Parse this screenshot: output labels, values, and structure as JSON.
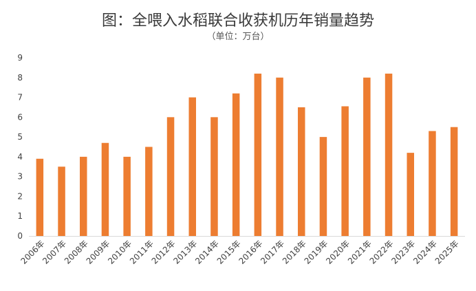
{
  "chart_data": {
    "type": "bar",
    "title": "图：全喂入水稻联合收获机历年销量趋势",
    "subtitle": "（单位：万台）",
    "xlabel": "",
    "ylabel": "",
    "categories": [
      "2006年",
      "2007年",
      "2008年",
      "2009年",
      "2010年",
      "2011年",
      "2012年",
      "2013年",
      "2014年",
      "2015年",
      "2016年",
      "2017年",
      "2018年",
      "2019年",
      "2020年",
      "2021年",
      "2022年",
      "2023年",
      "2024年",
      "2025年"
    ],
    "values": [
      3.9,
      3.5,
      4.0,
      4.7,
      4.0,
      4.5,
      6.0,
      7.0,
      6.0,
      7.2,
      8.2,
      8.0,
      6.5,
      5.0,
      6.55,
      8.0,
      8.2,
      4.2,
      5.3,
      5.5
    ],
    "ylim": [
      0,
      9
    ],
    "yticks": [
      "0",
      "1",
      "2",
      "3",
      "4",
      "5",
      "6",
      "7",
      "8",
      "9"
    ],
    "grid": false,
    "legend": "none",
    "bar_color": "#ED7D31",
    "axis_color": "#D9D9D9"
  }
}
